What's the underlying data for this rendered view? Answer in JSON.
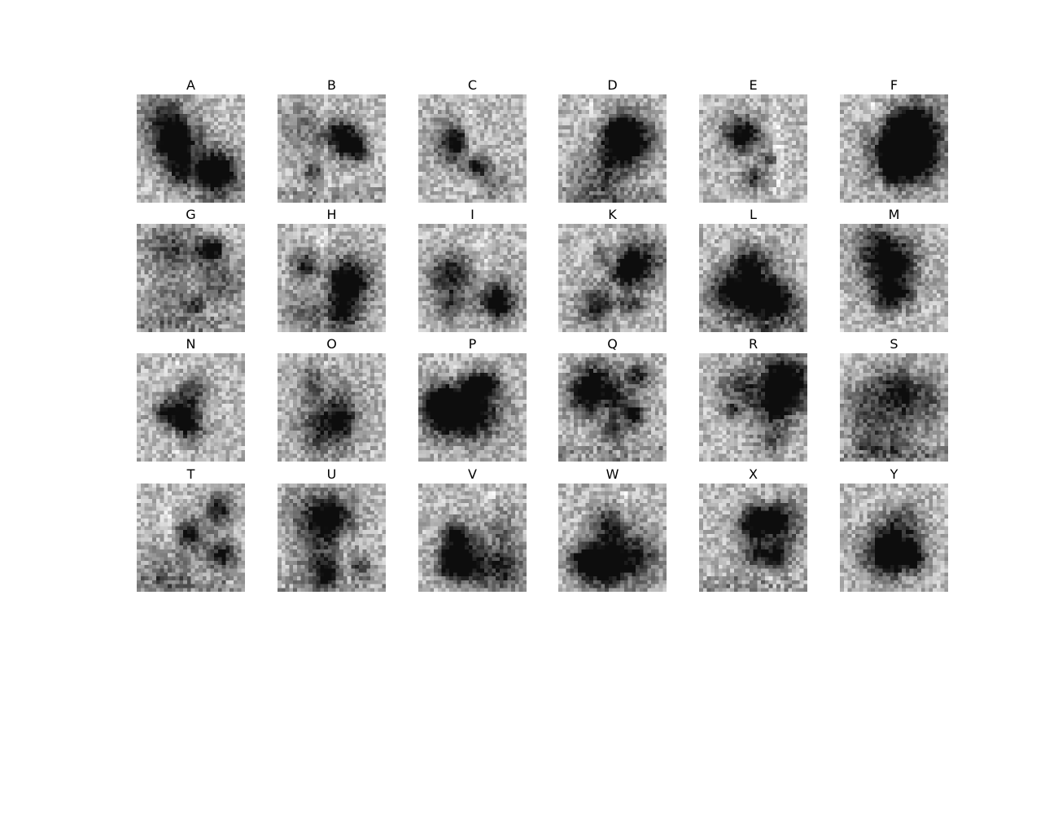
{
  "figure": {
    "panels": [
      {
        "label": "A"
      },
      {
        "label": "B"
      },
      {
        "label": "C"
      },
      {
        "label": "D"
      },
      {
        "label": "E"
      },
      {
        "label": "F"
      },
      {
        "label": "G"
      },
      {
        "label": "H"
      },
      {
        "label": "I"
      },
      {
        "label": "K"
      },
      {
        "label": "L"
      },
      {
        "label": "M"
      },
      {
        "label": "N"
      },
      {
        "label": "O"
      },
      {
        "label": "P"
      },
      {
        "label": "Q"
      },
      {
        "label": "R"
      },
      {
        "label": "S"
      },
      {
        "label": "T"
      },
      {
        "label": "U"
      },
      {
        "label": "V"
      },
      {
        "label": "W"
      },
      {
        "label": "X"
      },
      {
        "label": "Y"
      }
    ],
    "colormap": "gray"
  }
}
